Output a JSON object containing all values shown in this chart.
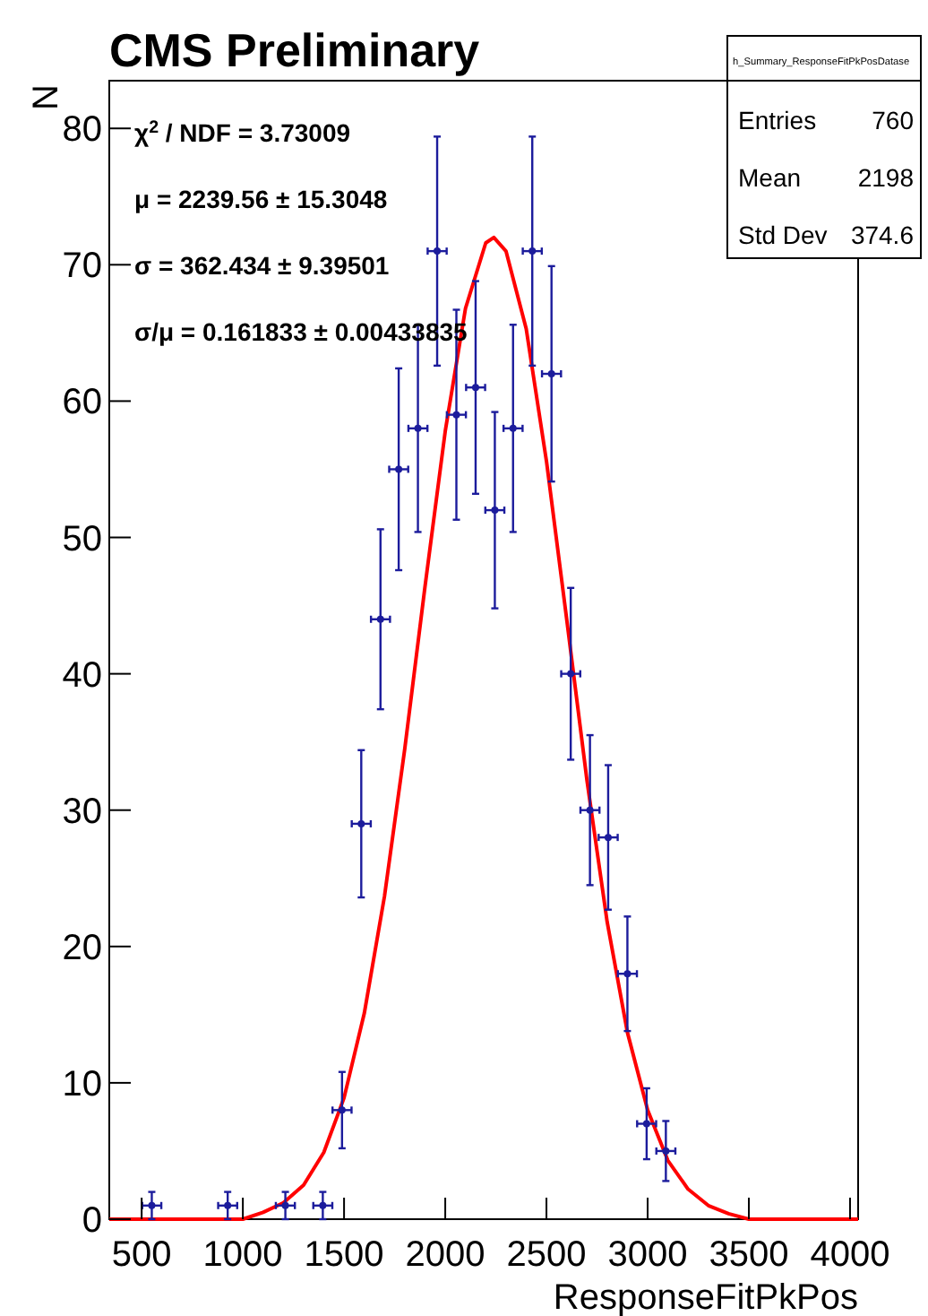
{
  "chart_data": {
    "type": "scatter",
    "title": "CMS Preliminary",
    "xlabel": "ResponseFitPkPos",
    "ylabel": "N",
    "xlim": [
      340,
      4040
    ],
    "ylim": [
      0,
      83.5
    ],
    "xticks": [
      500,
      1000,
      1500,
      2000,
      2500,
      3000,
      3500,
      4000
    ],
    "yticks": [
      0,
      10,
      20,
      30,
      40,
      50,
      60,
      70,
      80
    ],
    "grid": false,
    "series": [
      {
        "color": "#1c1c9c",
        "x": [
          550,
          925,
          1210,
          1395,
          1490,
          1585,
          1680,
          1770,
          1865,
          1960,
          2055,
          2150,
          2245,
          2335,
          2430,
          2525,
          2620,
          2715,
          2805,
          2900,
          2995,
          3090
        ],
        "values": [
          1,
          1,
          1,
          1,
          8,
          29,
          44,
          55,
          58,
          71,
          59,
          61,
          52,
          58,
          71,
          62,
          40,
          30,
          28,
          18,
          7,
          5
        ],
        "errors": [
          1,
          1,
          1,
          1,
          2.8,
          5.4,
          6.6,
          7.4,
          7.6,
          8.4,
          7.7,
          7.8,
          7.2,
          7.6,
          8.4,
          7.9,
          6.3,
          5.5,
          5.3,
          4.2,
          2.6,
          2.2
        ],
        "xerrors": [
          47,
          47,
          47,
          47,
          47,
          47,
          47,
          47,
          47,
          47,
          47,
          47,
          47,
          47,
          47,
          47,
          47,
          47,
          47,
          47,
          47,
          47
        ]
      },
      {
        "type": "line",
        "color": "#ff0000",
        "line_style": "solid",
        "x": [
          340,
          1000,
          1100,
          1200,
          1300,
          1400,
          1500,
          1600,
          1700,
          1800,
          1900,
          2000,
          2100,
          2200,
          2240,
          2300,
          2400,
          2500,
          2600,
          2700,
          2800,
          2900,
          3000,
          3100,
          3200,
          3300,
          3400,
          3500,
          4040
        ],
        "values": [
          0,
          0,
          0.5,
          1.2,
          2.5,
          4.9,
          8.9,
          15.1,
          23.7,
          34.5,
          46.4,
          57.8,
          66.8,
          71.6,
          72,
          71,
          65.3,
          55.6,
          44,
          32.2,
          21.8,
          13.7,
          8,
          4.3,
          2.2,
          1,
          0.4,
          0,
          0
        ]
      }
    ],
    "annotations": [
      "χ$^{2}$ / NDF = 3.73009",
      "μ = 2239.56 ± 15.3048",
      "σ = 362.434 ± 9.39501",
      "σ/μ = 0.161833 ± 0.00433835",
      "h_Summary_ResponseFitPkPosDatase",
      "Entries",
      "760",
      "Mean",
      "2198",
      "Std Dev",
      "374.6"
    ]
  }
}
